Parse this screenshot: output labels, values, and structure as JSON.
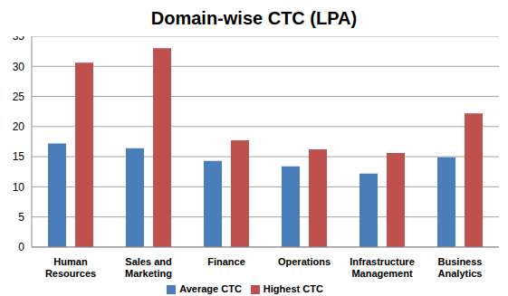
{
  "chart_data": {
    "type": "bar",
    "title": "Domain-wise CTC (LPA)",
    "categories": [
      "Human Resources",
      "Sales and Marketing",
      "Finance",
      "Operations",
      "Infrastructure Management",
      "Business Analytics"
    ],
    "series": [
      {
        "name": "Average CTC",
        "color": "#4a7ebb",
        "values": [
          17.2,
          16.4,
          14.3,
          13.4,
          12.2,
          14.9
        ]
      },
      {
        "name": "Highest CTC",
        "color": "#c0504d",
        "values": [
          30.6,
          33.0,
          17.7,
          16.2,
          15.6,
          22.2
        ]
      }
    ],
    "ylim": [
      0,
      35
    ],
    "yticks": [
      0,
      5,
      10,
      15,
      20,
      25,
      30,
      35
    ],
    "grid": true,
    "legend": "bottom"
  }
}
